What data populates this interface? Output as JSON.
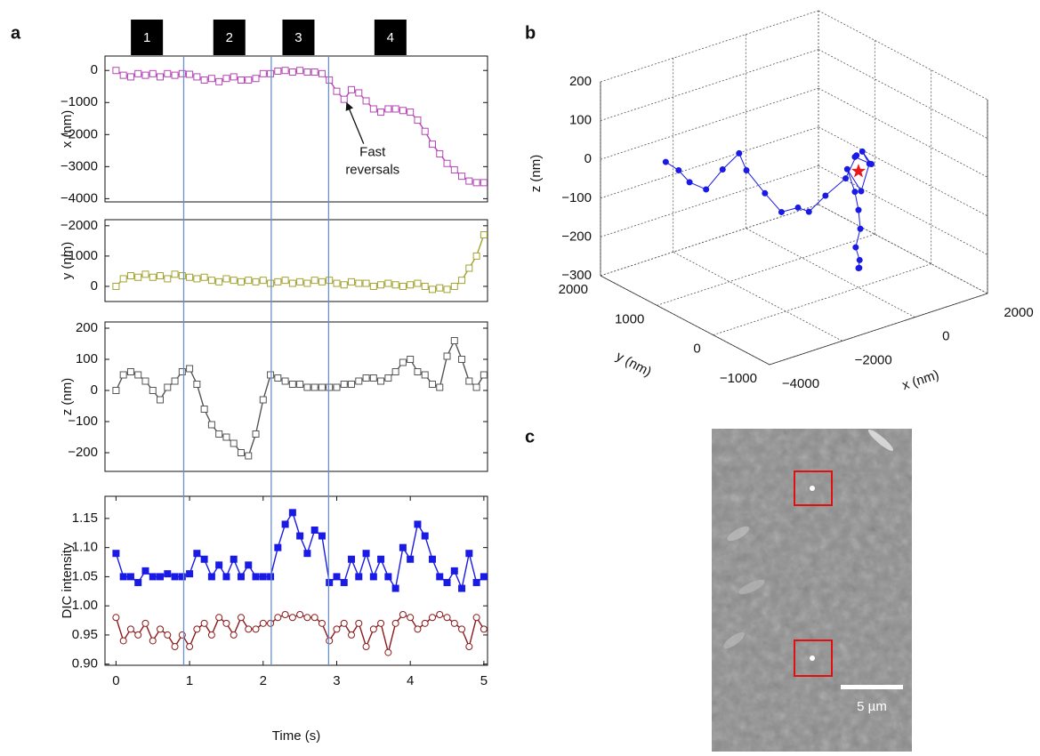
{
  "panel_labels": [
    "a",
    "b",
    "c"
  ],
  "chart_data": [
    {
      "type": "line",
      "ylabel": "x (nm)",
      "xlim": [
        -0.15,
        5.05
      ],
      "ylim": [
        -4100,
        450
      ],
      "yticks": [
        {
          "value": -4000,
          "label": "−4000"
        },
        {
          "value": -3000,
          "label": "−3000"
        },
        {
          "value": -2000,
          "label": "−2000"
        },
        {
          "value": -1000,
          "label": "−1000"
        },
        0
      ],
      "x": [
        0,
        0.1,
        0.2,
        0.3,
        0.4,
        0.5,
        0.6,
        0.7,
        0.8,
        0.9,
        1,
        1.1,
        1.2,
        1.3,
        1.4,
        1.5,
        1.6,
        1.7,
        1.8,
        1.9,
        2,
        2.1,
        2.2,
        2.3,
        2.4,
        2.5,
        2.6,
        2.7,
        2.8,
        2.9,
        3,
        3.1,
        3.2,
        3.3,
        3.4,
        3.5,
        3.6,
        3.7,
        3.8,
        3.9,
        4,
        4.1,
        4.2,
        4.3,
        4.4,
        4.5,
        4.6,
        4.7,
        4.8,
        4.9,
        5
      ],
      "series": [
        {
          "color": "#b545b5",
          "marker": "square-open",
          "values": [
            0,
            -150,
            -200,
            -100,
            -150,
            -100,
            -200,
            -100,
            -150,
            -100,
            -120,
            -200,
            -300,
            -250,
            -350,
            -250,
            -200,
            -300,
            -300,
            -250,
            -100,
            -100,
            -20,
            0,
            -50,
            0,
            -50,
            -50,
            -100,
            -300,
            -650,
            -900,
            -600,
            -700,
            -950,
            -1200,
            -1300,
            -1200,
            -1200,
            -1250,
            -1300,
            -1550,
            -1900,
            -2300,
            -2600,
            -2900,
            -3100,
            -3300,
            -3450,
            -3500,
            -3500
          ]
        }
      ],
      "phases": [
        {
          "label": "1",
          "x": 0.42
        },
        {
          "label": "2",
          "x": 1.54
        },
        {
          "label": "3",
          "x": 2.48
        },
        {
          "label": "4",
          "x": 3.73
        }
      ],
      "vlines": [
        0.92,
        2.11,
        2.89
      ],
      "annotation": {
        "lines": [
          "Fast",
          "reversals"
        ],
        "x": 3.1,
        "y": -900
      }
    },
    {
      "type": "line",
      "ylabel": "y (nm)",
      "xlim": [
        -0.15,
        5.05
      ],
      "ylim": [
        500,
        -2200
      ],
      "yticks": [
        {
          "value": -2000,
          "label": "−2000"
        },
        {
          "value": -1000,
          "label": "−1000"
        },
        0
      ],
      "x": [
        0,
        0.1,
        0.2,
        0.3,
        0.4,
        0.5,
        0.6,
        0.7,
        0.8,
        0.9,
        1,
        1.1,
        1.2,
        1.3,
        1.4,
        1.5,
        1.6,
        1.7,
        1.8,
        1.9,
        2,
        2.1,
        2.2,
        2.3,
        2.4,
        2.5,
        2.6,
        2.7,
        2.8,
        2.9,
        3,
        3.1,
        3.2,
        3.3,
        3.4,
        3.5,
        3.6,
        3.7,
        3.8,
        3.9,
        4,
        4.1,
        4.2,
        4.3,
        4.4,
        4.5,
        4.6,
        4.7,
        4.8,
        4.9,
        5
      ],
      "series": [
        {
          "color": "#a3a332",
          "marker": "square-open",
          "values": [
            0,
            -250,
            -350,
            -300,
            -400,
            -300,
            -350,
            -250,
            -400,
            -350,
            -300,
            -250,
            -300,
            -200,
            -150,
            -250,
            -200,
            -150,
            -200,
            -150,
            -200,
            -100,
            -150,
            -200,
            -100,
            -150,
            -100,
            -200,
            -150,
            -200,
            -100,
            -50,
            -150,
            -100,
            -100,
            0,
            -50,
            -100,
            -50,
            0,
            -50,
            -100,
            0,
            100,
            50,
            100,
            0,
            -200,
            -600,
            -1000,
            -1700
          ]
        }
      ]
    },
    {
      "type": "line",
      "ylabel": "z (nm)",
      "xlim": [
        -0.15,
        5.05
      ],
      "ylim": [
        -260,
        220
      ],
      "yticks": [
        {
          "value": -200,
          "label": "−200"
        },
        {
          "value": -100,
          "label": "−100"
        },
        0,
        100,
        200
      ],
      "x": [
        0,
        0.1,
        0.2,
        0.3,
        0.4,
        0.5,
        0.6,
        0.7,
        0.8,
        0.9,
        1,
        1.1,
        1.2,
        1.3,
        1.4,
        1.5,
        1.6,
        1.7,
        1.8,
        1.9,
        2,
        2.1,
        2.2,
        2.3,
        2.4,
        2.5,
        2.6,
        2.7,
        2.8,
        2.9,
        3,
        3.1,
        3.2,
        3.3,
        3.4,
        3.5,
        3.6,
        3.7,
        3.8,
        3.9,
        4,
        4.1,
        4.2,
        4.3,
        4.4,
        4.5,
        4.6,
        4.7,
        4.8,
        4.9,
        5
      ],
      "series": [
        {
          "color": "#555555",
          "marker": "square-open",
          "values": [
            0,
            50,
            60,
            50,
            30,
            0,
            -30,
            10,
            30,
            60,
            70,
            20,
            -60,
            -110,
            -140,
            -150,
            -170,
            -200,
            -210,
            -140,
            -30,
            50,
            40,
            30,
            20,
            20,
            10,
            10,
            10,
            10,
            10,
            20,
            20,
            30,
            40,
            40,
            30,
            40,
            60,
            90,
            100,
            60,
            50,
            20,
            10,
            110,
            160,
            100,
            30,
            10,
            50
          ]
        }
      ]
    },
    {
      "type": "line",
      "ylabel": "DIC intensity",
      "xlabel": "Time (s)",
      "xlim": [
        -0.15,
        5.05
      ],
      "ylim": [
        0.898,
        1.188
      ],
      "yticks": [
        {
          "value": 0.9,
          "label": "0.90"
        },
        0.95,
        {
          "value": 1,
          "label": "1.00"
        },
        1.05,
        {
          "value": 1.1,
          "label": "1.10"
        },
        1.15
      ],
      "xticks": [
        0,
        1,
        2,
        3,
        4,
        5
      ],
      "x": [
        0,
        0.1,
        0.2,
        0.3,
        0.4,
        0.5,
        0.6,
        0.7,
        0.8,
        0.9,
        1,
        1.1,
        1.2,
        1.3,
        1.4,
        1.5,
        1.6,
        1.7,
        1.8,
        1.9,
        2,
        2.1,
        2.2,
        2.3,
        2.4,
        2.5,
        2.6,
        2.7,
        2.8,
        2.9,
        3,
        3.1,
        3.2,
        3.3,
        3.4,
        3.5,
        3.6,
        3.7,
        3.8,
        3.9,
        4,
        4.1,
        4.2,
        4.3,
        4.4,
        4.5,
        4.6,
        4.7,
        4.8,
        4.9,
        5
      ],
      "series": [
        {
          "color": "#1a1ae6",
          "marker": "square",
          "values": [
            1.09,
            1.05,
            1.05,
            1.04,
            1.06,
            1.05,
            1.05,
            1.055,
            1.05,
            1.05,
            1.055,
            1.09,
            1.08,
            1.05,
            1.07,
            1.05,
            1.08,
            1.05,
            1.07,
            1.05,
            1.05,
            1.05,
            1.1,
            1.14,
            1.16,
            1.12,
            1.09,
            1.13,
            1.12,
            1.04,
            1.05,
            1.04,
            1.08,
            1.05,
            1.09,
            1.05,
            1.08,
            1.05,
            1.03,
            1.1,
            1.08,
            1.14,
            1.12,
            1.08,
            1.05,
            1.04,
            1.06,
            1.03,
            1.09,
            1.04,
            1.05
          ]
        },
        {
          "color": "#8b1a1a",
          "marker": "circle-open",
          "values": [
            0.98,
            0.94,
            0.96,
            0.95,
            0.97,
            0.94,
            0.96,
            0.95,
            0.93,
            0.95,
            0.93,
            0.96,
            0.97,
            0.95,
            0.98,
            0.97,
            0.95,
            0.98,
            0.96,
            0.96,
            0.97,
            0.97,
            0.98,
            0.985,
            0.98,
            0.985,
            0.98,
            0.98,
            0.97,
            0.94,
            0.96,
            0.97,
            0.95,
            0.97,
            0.93,
            0.96,
            0.97,
            0.92,
            0.97,
            0.985,
            0.98,
            0.96,
            0.97,
            0.98,
            0.985,
            0.98,
            0.97,
            0.96,
            0.93,
            0.98,
            0.96
          ]
        }
      ]
    },
    {
      "type": "scatter3d",
      "xlabel": "x (nm)",
      "ylabel": "y (nm)",
      "zlabel": "z (nm)",
      "xlim": [
        -4000,
        2000
      ],
      "ylim": [
        -1000,
        2000
      ],
      "zlim": [
        -300,
        200
      ],
      "xticks": [
        {
          "value": -4000,
          "label": "−4000"
        },
        {
          "value": -2000,
          "label": "−2000"
        },
        0,
        2000
      ],
      "yticks": [
        {
          "value": -1000,
          "label": "−1000"
        },
        0,
        1000,
        2000
      ],
      "zticks": [
        {
          "value": -300,
          "label": "−300"
        },
        {
          "value": -200,
          "label": "−200"
        },
        {
          "value": -100,
          "label": "−100"
        },
        0,
        100,
        200
      ],
      "grid": true,
      "series": [
        {
          "color": "#1a1ae6",
          "marker": "circle",
          "x": [
            -3600,
            -3400,
            -3100,
            -2800,
            -2500,
            -2200,
            -2000,
            -1800,
            -1500,
            -1200,
            -900,
            -600,
            -200,
            100,
            -100,
            200,
            -50,
            300,
            150,
            0,
            -100,
            0,
            50,
            0,
            30,
            0,
            20
          ],
          "y": [
            1100,
            1000,
            1000,
            900,
            800,
            700,
            700,
            500,
            400,
            300,
            300,
            200,
            100,
            100,
            0,
            -100,
            -100,
            0,
            50,
            200,
            0,
            0,
            0,
            50,
            0,
            0,
            0
          ],
          "z": [
            50,
            30,
            -10,
            -30,
            20,
            60,
            10,
            -40,
            -90,
            -80,
            -100,
            -60,
            -20,
            30,
            40,
            20,
            60,
            10,
            -60,
            -10,
            -50,
            -100,
            -150,
            -200,
            -230,
            -250,
            -250
          ]
        },
        {
          "color": "#e61a1a",
          "marker": "star",
          "x": [
            0
          ],
          "y": [
            0
          ],
          "z": [
            0
          ]
        }
      ]
    }
  ],
  "image": {
    "scale_bar_label": "5 µm"
  }
}
